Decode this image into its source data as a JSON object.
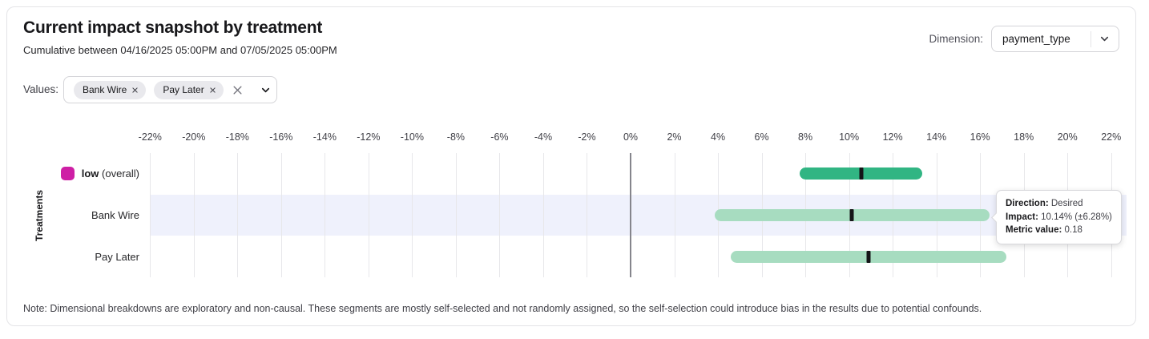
{
  "header": {
    "title": "Current impact snapshot by treatment",
    "subtitle": "Cumulative between 04/16/2025 05:00PM and 07/05/2025 05:00PM",
    "dimension_label": "Dimension:",
    "dimension_value": "payment_type"
  },
  "filters": {
    "values_label": "Values:",
    "chips": [
      {
        "label": "Bank Wire"
      },
      {
        "label": "Pay Later"
      }
    ]
  },
  "icons": {
    "chip_remove": "x-icon",
    "values_clear": "x-icon",
    "values_expand": "chevron-down-icon",
    "dimension_select": "chevron-down-icon"
  },
  "colors": {
    "overall_bar": "#31b583",
    "dimension_bar": "#a7dcc0",
    "impact_marker": "#141417",
    "variant_legend": "#ce1fa5",
    "highlight_band": "#eff1fc"
  },
  "chart_data": {
    "type": "bar",
    "subtype": "horizontal-confidence-interval",
    "ylabel": "Treatments",
    "x_unit": "%",
    "xlim": [
      -23,
      23
    ],
    "x_ticks": [
      -22,
      -20,
      -18,
      -16,
      -14,
      -12,
      -10,
      -8,
      -6,
      -4,
      -2,
      0,
      2,
      4,
      6,
      8,
      10,
      12,
      14,
      16,
      18,
      20,
      22
    ],
    "grid": true,
    "rows": [
      {
        "label": "low",
        "label_suffix": "(overall)",
        "legend_color": "#ce1fa5",
        "impact": 10.55,
        "margin": 2.8,
        "range": [
          7.75,
          13.35
        ],
        "bar_color": "#31b583",
        "highlighted": false
      },
      {
        "label": "Bank Wire",
        "impact": 10.14,
        "margin": 6.28,
        "range": [
          3.86,
          16.42
        ],
        "bar_color": "#a7dcc0",
        "highlighted": true
      },
      {
        "label": "Pay Later",
        "impact": 10.9,
        "margin": 6.3,
        "range": [
          4.6,
          17.2
        ],
        "bar_color": "#a7dcc0",
        "highlighted": false
      }
    ]
  },
  "tooltip": {
    "direction_label": "Direction:",
    "direction_value": "Desired",
    "impact_label": "Impact:",
    "impact_value": "10.14% (±6.28%)",
    "metric_label": "Metric value:",
    "metric_value": "0.18"
  },
  "note": "Note: Dimensional breakdowns are exploratory and non-causal. These segments are mostly self-selected and not randomly assigned, so the self-selection could introduce bias in the results due to potential confounds."
}
